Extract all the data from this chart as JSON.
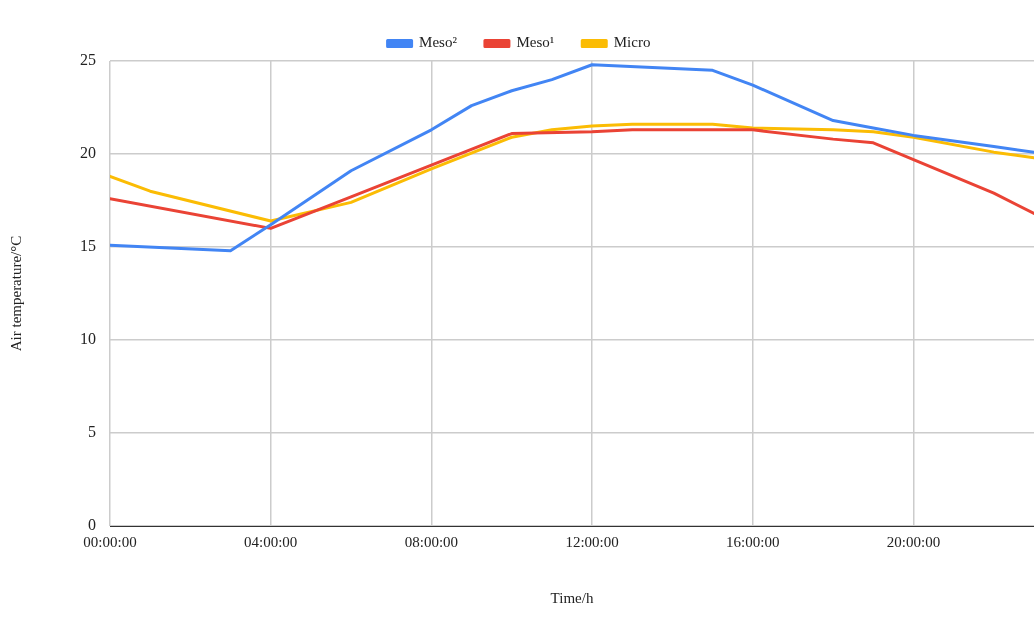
{
  "chart_data": {
    "type": "line",
    "xlabel": "Time/h",
    "ylabel": "Air temperature/°C",
    "xlim": [
      0,
      23
    ],
    "xticks": [
      {
        "value": 0,
        "label": "00:00:00"
      },
      {
        "value": 4,
        "label": "04:00:00"
      },
      {
        "value": 8,
        "label": "08:00:00"
      },
      {
        "value": 12,
        "label": "12:00:00"
      },
      {
        "value": 16,
        "label": "16:00:00"
      },
      {
        "value": 20,
        "label": "20:00:00"
      }
    ],
    "ylim": [
      0,
      25
    ],
    "yticks": [
      0,
      5,
      10,
      15,
      20,
      25
    ],
    "grid": true,
    "legend": "top",
    "marker": "none",
    "line_style": "solid",
    "series": [
      {
        "name": "Meso²",
        "color": "#4285f4",
        "x": [
          0,
          3,
          4,
          6,
          8,
          9,
          10,
          11,
          12,
          15,
          16,
          18,
          19,
          20,
          22,
          23
        ],
        "values": [
          15.1,
          14.8,
          16.2,
          19.1,
          21.3,
          22.6,
          23.4,
          24.0,
          24.8,
          24.5,
          23.7,
          21.8,
          21.4,
          21.0,
          20.4,
          20.1
        ]
      },
      {
        "name": "Meso¹",
        "color": "#ea4335",
        "x": [
          0,
          4,
          6,
          8,
          10,
          12,
          13,
          15,
          16,
          18,
          19,
          20,
          22,
          23
        ],
        "values": [
          17.6,
          16.0,
          17.7,
          19.4,
          21.1,
          21.2,
          21.3,
          21.3,
          21.3,
          20.8,
          20.6,
          19.7,
          17.9,
          16.8
        ]
      },
      {
        "name": "Micro",
        "color": "#fbbc04",
        "x": [
          0,
          1,
          4,
          6,
          8,
          10,
          11,
          12,
          13,
          15,
          16,
          18,
          19,
          20,
          22,
          23
        ],
        "values": [
          18.8,
          18.0,
          16.4,
          17.4,
          19.2,
          20.9,
          21.3,
          21.5,
          21.6,
          21.6,
          21.4,
          21.3,
          21.2,
          20.9,
          20.1,
          19.8
        ]
      }
    ]
  }
}
